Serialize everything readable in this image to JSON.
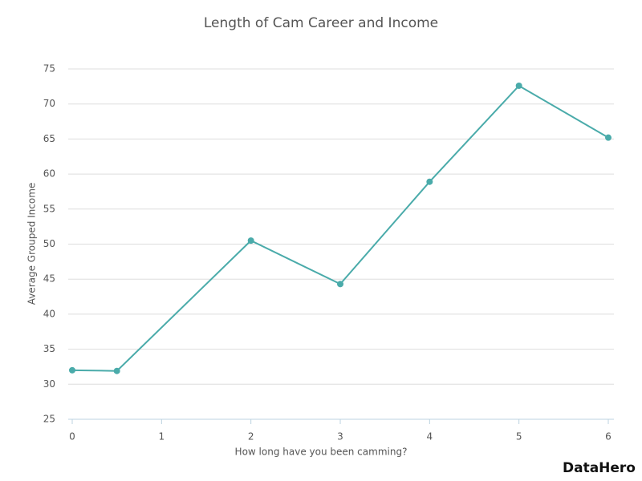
{
  "chart_data": {
    "type": "line",
    "title": "Length of Cam Career and Income",
    "x_label": "How long have you been camming?",
    "y_label": "Average Grouped Income",
    "x": [
      0,
      0.5,
      2,
      3,
      4,
      5,
      6
    ],
    "series": [
      {
        "name": "Average Grouped Income",
        "color": "#4aabaa",
        "values": [
          32,
          31.9,
          50.5,
          44.3,
          58.9,
          72.6,
          65.2
        ]
      }
    ],
    "xlim": [
      0,
      6
    ],
    "xticks": [
      0,
      1,
      2,
      3,
      4,
      5,
      6
    ],
    "ylim": [
      25,
      75
    ],
    "yticks": [
      25,
      30,
      35,
      40,
      45,
      50,
      55,
      60,
      65,
      70,
      75
    ],
    "grid": true,
    "watermark": "DataHero"
  }
}
